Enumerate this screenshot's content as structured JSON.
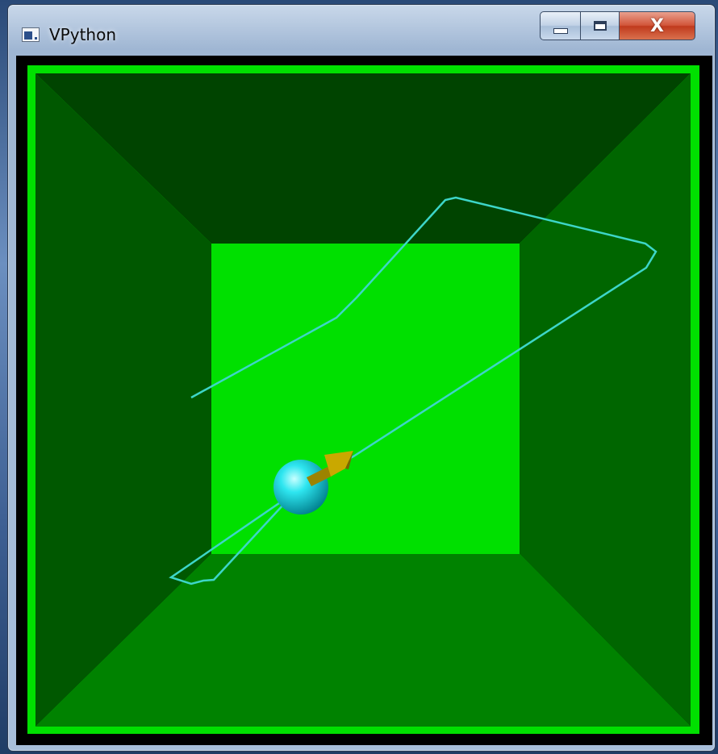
{
  "window": {
    "title": "VPython",
    "icon": "vpython-app-icon",
    "controls": {
      "minimize_icon": "minimize-icon",
      "maximize_icon": "maximize-icon",
      "close_label": "X"
    }
  },
  "scene": {
    "background": "#000000",
    "box_colors": {
      "frame": "#00e000",
      "back_wall": "#00e000",
      "top_wall": "#004400",
      "left_wall": "#005800",
      "right_wall": "#006600",
      "bottom_wall": "#008200"
    },
    "trail_color": "#3dd6c8",
    "ball_color": "#00d8e8",
    "arrow_color": "#c9a800"
  }
}
